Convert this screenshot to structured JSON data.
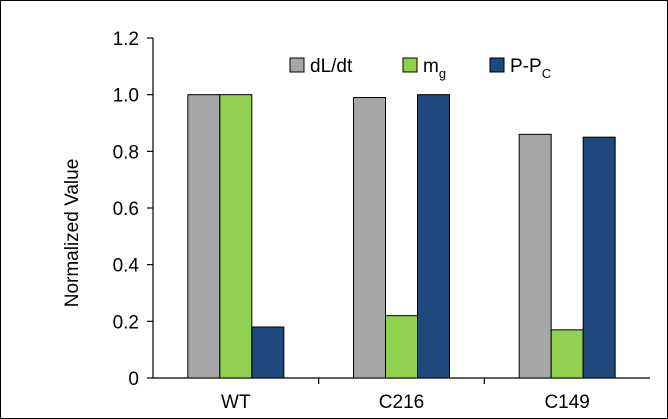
{
  "chart_data": {
    "type": "bar",
    "categories": [
      "WT",
      "C216",
      "C149"
    ],
    "series": [
      {
        "name": "dL/dt",
        "values": [
          1.0,
          0.99,
          0.86
        ],
        "color": "#A6A6A6"
      },
      {
        "name": "m",
        "subscript": "g",
        "values": [
          1.0,
          0.22,
          0.17
        ],
        "color": "#92D050"
      },
      {
        "name": "P-P",
        "subscript": "C",
        "values": [
          0.18,
          1.0,
          0.85
        ],
        "color": "#1F497D"
      }
    ],
    "title": "",
    "xlabel": "",
    "ylabel": "Normalized Value",
    "ylim": [
      0,
      1.2
    ],
    "yticks": [
      "0",
      "0.2",
      "0.4",
      "0.6",
      "0.8",
      "1.0",
      "1.2"
    ],
    "grid": false,
    "legend_position": "top-right"
  }
}
